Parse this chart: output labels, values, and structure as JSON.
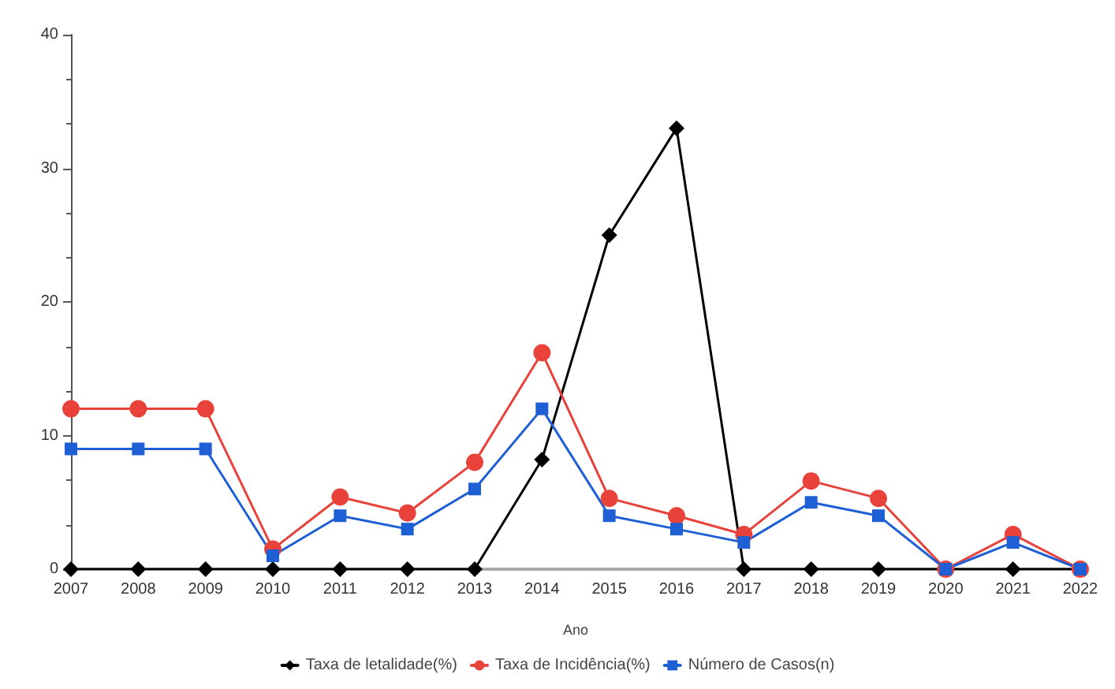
{
  "chart_data": {
    "type": "line",
    "xlabel": "Ano",
    "categories": [
      "2007",
      "2008",
      "2009",
      "2010",
      "2011",
      "2012",
      "2013",
      "2014",
      "2015",
      "2016",
      "2017",
      "2018",
      "2019",
      "2020",
      "2021",
      "2022"
    ],
    "series": [
      {
        "name": "Taxa de letalidade(%)",
        "color": "#000000",
        "marker": "diamond",
        "values": [
          0,
          0,
          0,
          0,
          0,
          0,
          0,
          8.2,
          25,
          33,
          0,
          0,
          0,
          0,
          0,
          0
        ]
      },
      {
        "name": "Taxa de Incidência(%)",
        "color": "#e8423a",
        "marker": "circle",
        "values": [
          12,
          12,
          12,
          1.5,
          5.4,
          4.2,
          8,
          16.2,
          5.3,
          4,
          2.6,
          6.6,
          5.3,
          0,
          2.6,
          0
        ]
      },
      {
        "name": "Número de Casos(n)",
        "color": "#1f5fd6",
        "marker": "square",
        "values": [
          9,
          9,
          9,
          1,
          4,
          3,
          6,
          12,
          4,
          3,
          2,
          5,
          4,
          0,
          2,
          0
        ]
      }
    ],
    "ylim": [
      0,
      40
    ],
    "yticks": [
      0,
      10,
      20,
      30,
      40
    ],
    "grid": false,
    "legend": "bottom",
    "line_style": "solid"
  }
}
